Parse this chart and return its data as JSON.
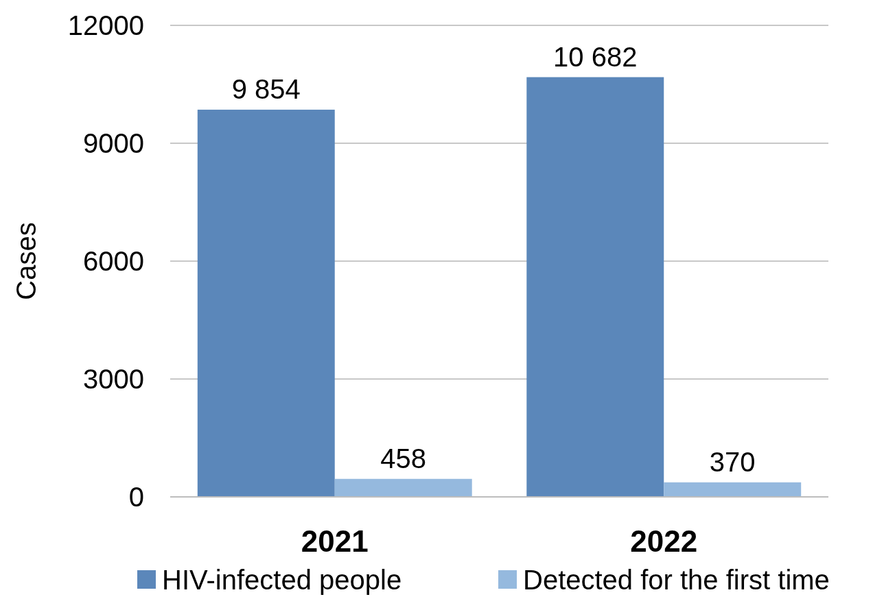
{
  "chart_data": {
    "type": "bar",
    "ylabel": "Cases",
    "categories": [
      "2021",
      "2022"
    ],
    "series": [
      {
        "name": "HIV-infected people",
        "color": "#5b87ba",
        "values": [
          9854,
          10682
        ],
        "value_labels": [
          "9 854",
          "10 682"
        ]
      },
      {
        "name": "Detected for the first time",
        "color": "#95b9de",
        "values": [
          458,
          370
        ],
        "value_labels": [
          "458",
          "370"
        ]
      }
    ],
    "ylim": [
      0,
      12000
    ],
    "yticks": [
      0,
      3000,
      6000,
      9000,
      12000
    ],
    "grid": "y",
    "legend": "bottom"
  }
}
